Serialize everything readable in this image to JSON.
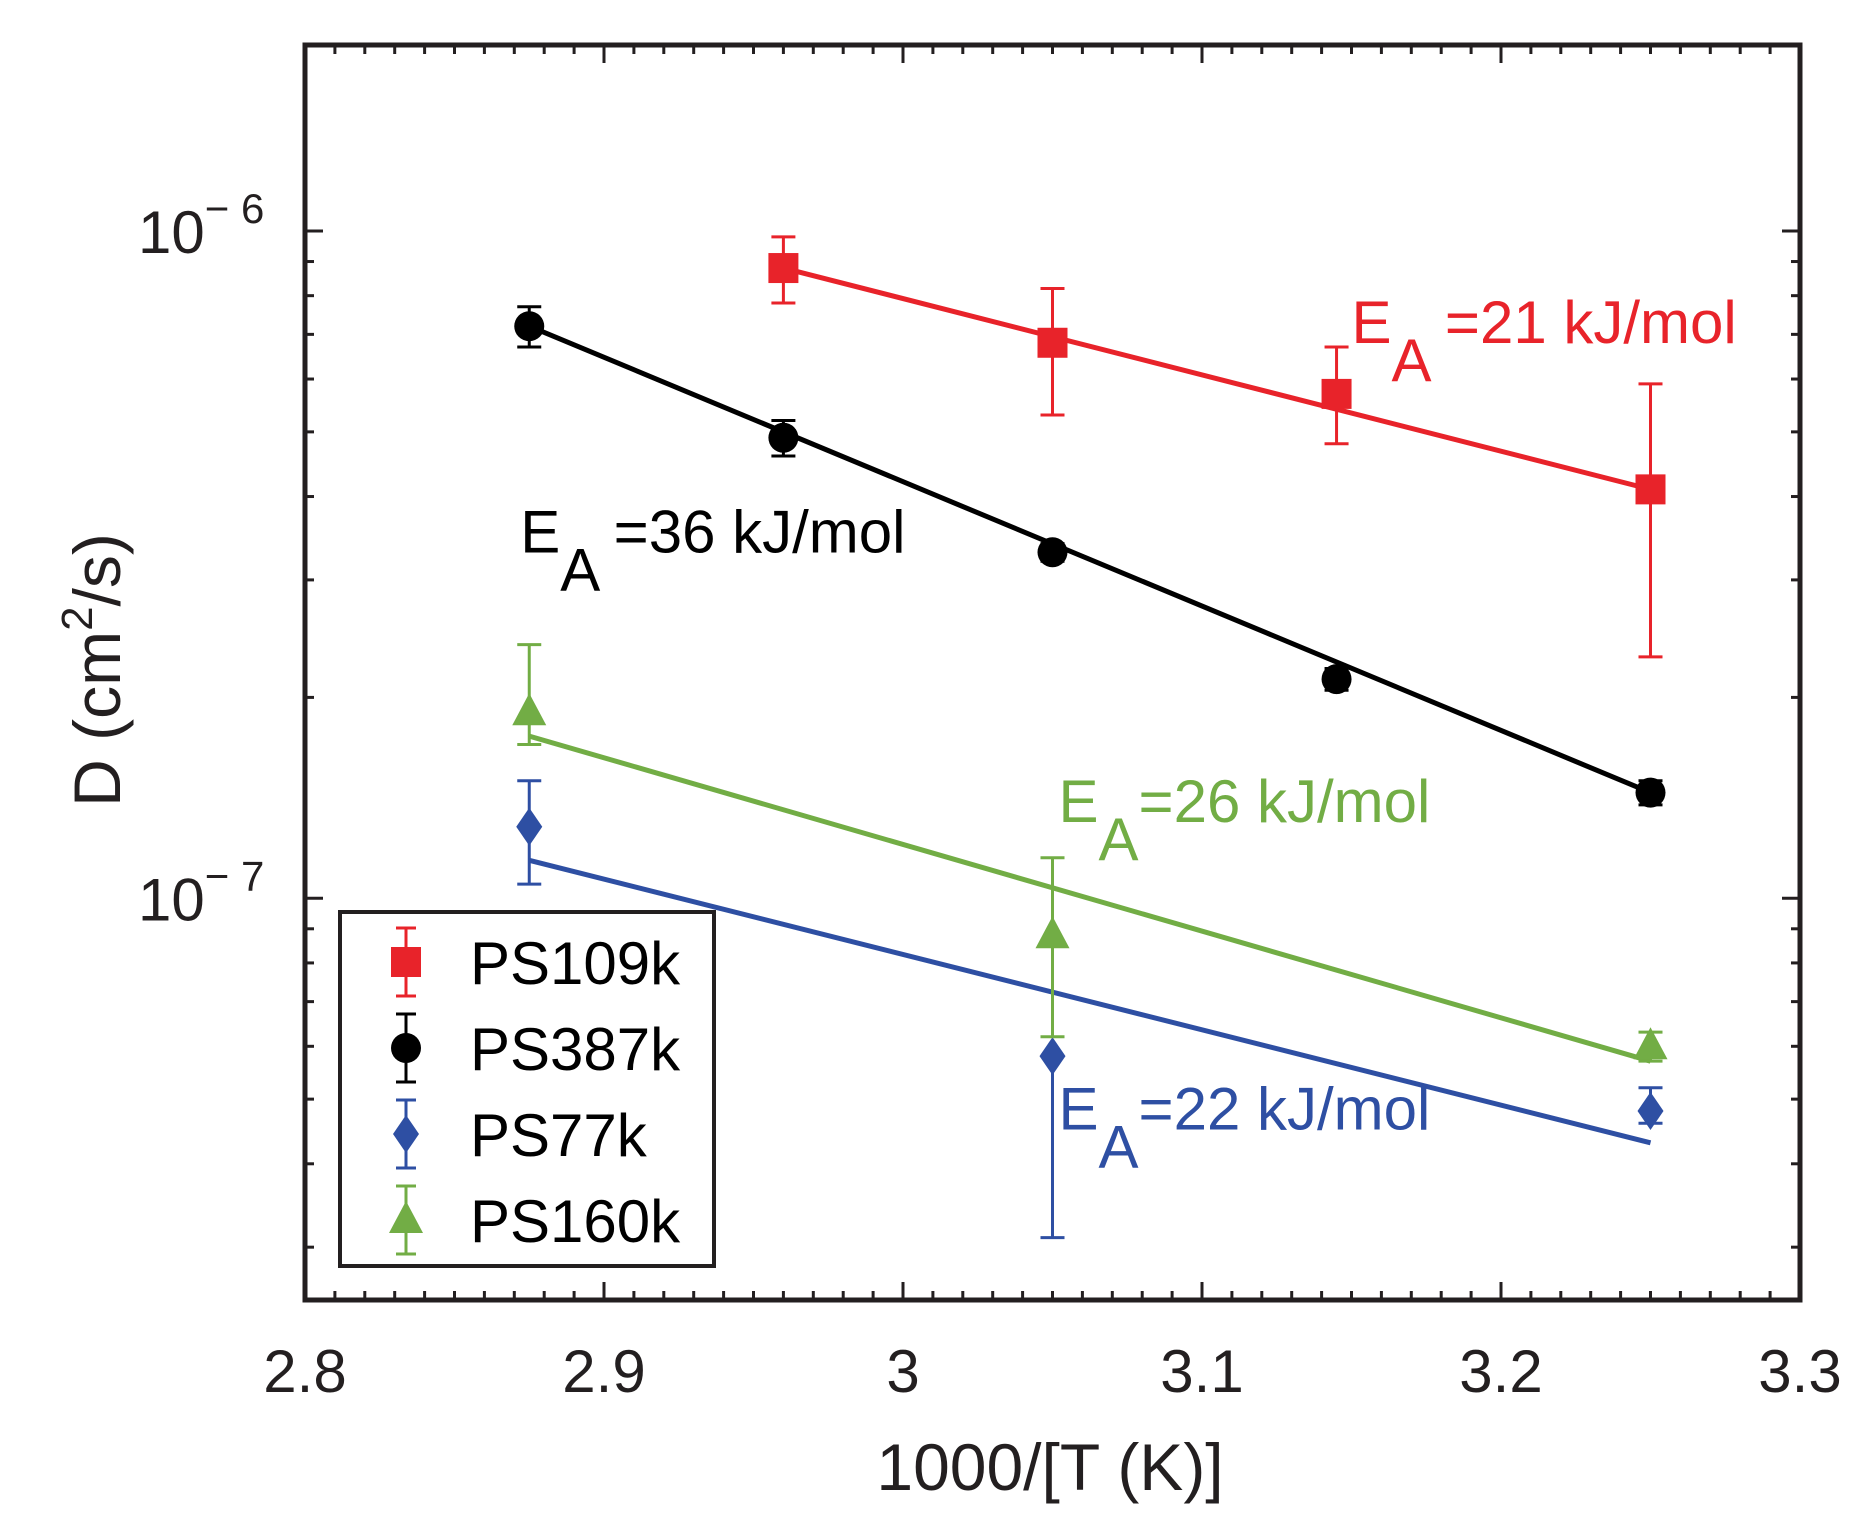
{
  "colors": {
    "red": "#e8232a",
    "black": "#000000",
    "blue": "#2e4fa3",
    "green": "#72ad45",
    "axis": "#231f20"
  },
  "chart_data": {
    "type": "scatter",
    "title": "",
    "xlabel": "1000/[T (K)]",
    "ylabel_main": "D (cm",
    "ylabel_sup": "2",
    "ylabel_tail": "/s)",
    "xlim": [
      2.8,
      3.3
    ],
    "ylim": [
      2.5e-08,
      1.9e-06
    ],
    "yscale": "log",
    "grid": false,
    "legend_position": "bottom-left",
    "x_ticks": [
      {
        "value": 2.8,
        "label": "2.8"
      },
      {
        "value": 2.9,
        "label": "2.9"
      },
      {
        "value": 3.0,
        "label": "3"
      },
      {
        "value": 3.1,
        "label": "3.1"
      },
      {
        "value": 3.2,
        "label": "3.2"
      },
      {
        "value": 3.3,
        "label": "3.3"
      }
    ],
    "y_ticks": [
      {
        "value": 1e-07,
        "base": "10",
        "exp": "− 7"
      },
      {
        "value": 1e-06,
        "base": "10",
        "exp": "− 6"
      }
    ],
    "series": [
      {
        "name": "PS109k",
        "color": "#e8232a",
        "marker": "square",
        "x": [
          2.96,
          3.05,
          3.145,
          3.25
        ],
        "y": [
          8.8e-07,
          6.8e-07,
          5.7e-07,
          4.1e-07
        ],
        "y_lo": [
          7.8e-07,
          5.3e-07,
          4.8e-07,
          2.3e-07
        ],
        "y_hi": [
          9.8e-07,
          8.2e-07,
          6.7e-07,
          5.9e-07
        ],
        "fit": {
          "x": [
            2.96,
            3.25
          ],
          "y": [
            8.8e-07,
            4.1e-07
          ]
        },
        "annotation": {
          "prefix": "E",
          "sub": "A",
          "text": " =21 kJ/mol",
          "x": 3.15,
          "y": 6.8e-07
        }
      },
      {
        "name": "PS387k",
        "color": "#000000",
        "marker": "circle",
        "x": [
          2.875,
          2.96,
          3.05,
          3.145,
          3.25
        ],
        "y": [
          7.2e-07,
          4.9e-07,
          3.3e-07,
          2.13e-07,
          1.44e-07
        ],
        "y_lo": [
          6.7e-07,
          4.6e-07,
          3.2e-07,
          2.05e-07,
          1.38e-07
        ],
        "y_hi": [
          7.7e-07,
          5.2e-07,
          3.4e-07,
          2.21e-07,
          1.5e-07
        ],
        "fit": {
          "x": [
            2.875,
            3.25
          ],
          "y": [
            7.2e-07,
            1.44e-07
          ]
        },
        "annotation": {
          "prefix": "E",
          "sub": "A",
          "text": " =36 kJ/mol",
          "x": 2.872,
          "y": 3.3e-07
        }
      },
      {
        "name": "PS77k",
        "color": "#2e4fa3",
        "marker": "diamond",
        "x": [
          2.875,
          3.05,
          3.25
        ],
        "y": [
          1.28e-07,
          5.8e-08,
          4.8e-08
        ],
        "y_lo": [
          1.05e-07,
          3.1e-08,
          4.6e-08
        ],
        "y_hi": [
          1.5e-07,
          5.8e-08,
          5.2e-08
        ],
        "fit": {
          "x": [
            2.875,
            3.25
          ],
          "y": [
            1.14e-07,
            4.3e-08
          ]
        },
        "annotation": {
          "prefix": "E",
          "sub": "A",
          "text": "=22 kJ/mol",
          "x": 3.052,
          "y": 4.5e-08
        }
      },
      {
        "name": "PS160k",
        "color": "#72ad45",
        "marker": "triangle",
        "x": [
          2.875,
          3.05,
          3.25
        ],
        "y": [
          1.9e-07,
          8.8e-08,
          6e-08
        ],
        "y_lo": [
          1.7e-07,
          6.2e-08,
          5.7e-08
        ],
        "y_hi": [
          2.4e-07,
          1.15e-07,
          6.3e-08
        ],
        "fit": {
          "x": [
            2.875,
            3.25
          ],
          "y": [
            1.75e-07,
            5.7e-08
          ]
        },
        "annotation": {
          "prefix": "E",
          "sub": "A",
          "text": "=26 kJ/mol",
          "x": 3.052,
          "y": 1.3e-07
        }
      }
    ]
  }
}
